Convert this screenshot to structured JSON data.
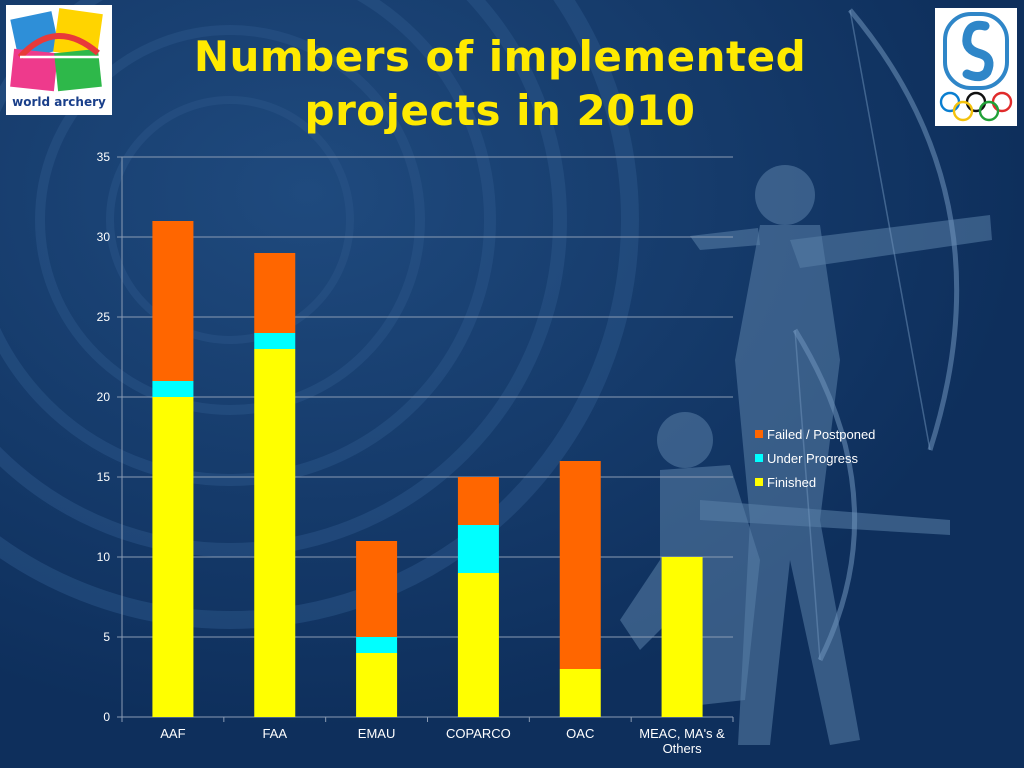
{
  "slide": {
    "title_line1": "Numbers of implemented",
    "title_line2": "projects in 2010",
    "logo_left_text": "world archery"
  },
  "colors": {
    "background": "#0e2f5c",
    "title": "#ffea00",
    "finished": "#ffff00",
    "under_progress": "#00ffff",
    "failed": "#ff6600"
  },
  "icons": {
    "logo_left": "world-archery-logo",
    "logo_right": "olympic-solidarity-logo",
    "background": "archer-silhouette"
  },
  "chart_data": {
    "type": "bar",
    "stacked": true,
    "categories": [
      "AAF",
      "FAA",
      "EMAU",
      "COPARCO",
      "OAC",
      "MEAC, MA's & Others"
    ],
    "category_lines": [
      [
        "AAF"
      ],
      [
        "FAA"
      ],
      [
        "EMAU"
      ],
      [
        "COPARCO"
      ],
      [
        "OAC"
      ],
      [
        "MEAC, MA's &",
        "Others"
      ]
    ],
    "series": [
      {
        "name": "Finished",
        "values": [
          20,
          23,
          4,
          9,
          3,
          10
        ],
        "color": "#ffff00"
      },
      {
        "name": "Under Progress",
        "values": [
          1,
          1,
          1,
          3,
          0,
          0
        ],
        "color": "#00ffff"
      },
      {
        "name": "Failed / Postponed",
        "values": [
          10,
          5,
          6,
          3,
          13,
          0
        ],
        "color": "#ff6600"
      }
    ],
    "legend_order": [
      "Failed / Postponed",
      "Under Progress",
      "Finished"
    ],
    "legend_position": "right",
    "ylim": [
      0,
      35
    ],
    "yticks": [
      0,
      5,
      10,
      15,
      20,
      25,
      30,
      35
    ],
    "grid": true,
    "title": "",
    "xlabel": "",
    "ylabel": ""
  }
}
